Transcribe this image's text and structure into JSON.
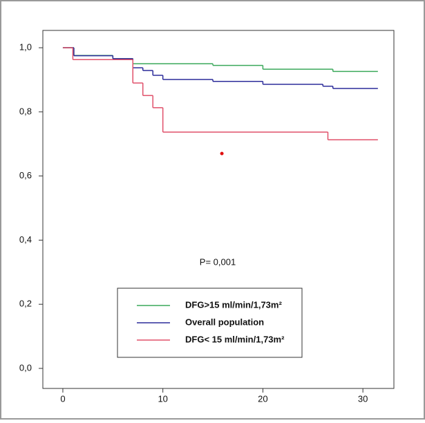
{
  "chart_data": {
    "type": "step",
    "annotation": "P= 0,001",
    "xlim": [
      -2,
      33.1
    ],
    "ylim": [
      -0.0625,
      1.054
    ],
    "xticks": [
      0,
      10,
      20,
      30
    ],
    "yticks": [
      {
        "value": 0,
        "label": "0,0"
      },
      {
        "value": 0.2,
        "label": "0,2"
      },
      {
        "value": 0.4,
        "label": "0,4"
      },
      {
        "value": 0.6,
        "label": "0,6"
      },
      {
        "value": 0.8,
        "label": "0,8"
      },
      {
        "value": 1,
        "label": "1,0"
      }
    ],
    "series": [
      {
        "name": "DFG>15 ml/min/1,73m²",
        "color": "#3aa85a",
        "x": [
          0,
          1.1,
          5,
          7,
          15,
          20,
          27,
          31.5
        ],
        "values": [
          1,
          0.976,
          0.966,
          0.95,
          0.945,
          0.933,
          0.926,
          0.926
        ]
      },
      {
        "name": "Overall population",
        "color": "#2b2b9a",
        "x": [
          0,
          1.1,
          5,
          7,
          8,
          9,
          10,
          15,
          20,
          26,
          27,
          31.5
        ],
        "values": [
          1,
          0.975,
          0.966,
          0.9375,
          0.929,
          0.914,
          0.901,
          0.895,
          0.886,
          0.88,
          0.873,
          0.873
        ]
      },
      {
        "name": "DFG< 15 ml/min/1,73m²",
        "color": "#e0506a",
        "x": [
          0,
          1,
          7,
          8,
          9,
          10,
          26.5,
          31.5
        ],
        "values": [
          1,
          0.963,
          0.89,
          0.851,
          0.813,
          0.737,
          0.713,
          0.713
        ]
      }
    ],
    "marker": {
      "x": 15.9,
      "y": 0.67,
      "color": "#e01010"
    }
  }
}
